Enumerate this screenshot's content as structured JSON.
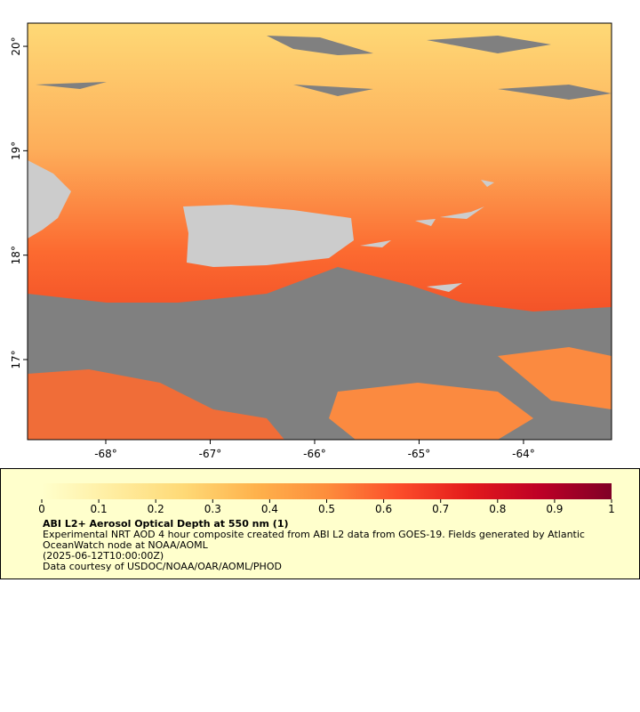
{
  "map": {
    "xlim": [
      -68.749,
      -63.157
    ],
    "ylim": [
      16.233,
      20.222
    ],
    "lon_ticks": [
      {
        "value": -68,
        "label": "-68°"
      },
      {
        "value": -67,
        "label": "-67°"
      },
      {
        "value": -66,
        "label": "-66°"
      },
      {
        "value": -65,
        "label": "-65°"
      },
      {
        "value": -64,
        "label": "-64°"
      }
    ],
    "lat_ticks": [
      {
        "value": 17,
        "label": "17°"
      },
      {
        "value": 18,
        "label": "18°"
      },
      {
        "value": 19,
        "label": "19°"
      },
      {
        "value": 20,
        "label": "20°"
      }
    ]
  },
  "colorbar": {
    "lim": [
      0,
      1
    ],
    "ticks": [
      0,
      0.1,
      0.2,
      0.3,
      0.4,
      0.5,
      0.6,
      0.7,
      0.8,
      0.9,
      1
    ],
    "colors": [
      "#ffffcc",
      "#ffeda0",
      "#fed976",
      "#feb24c",
      "#fd8d3c",
      "#fc4e2a",
      "#e31a1c",
      "#bd0026",
      "#800026"
    ]
  },
  "legend": {
    "title": "ABI L2+ Aerosol Optical Depth at 550 nm (1)",
    "lines": [
      "Experimental NRT AOD 4 hour composite created from ABI L2 data from GOES-19. Fields generated by Atlantic OceanWatch node at NOAA/AOML",
      "(2025-06-12T10:00:00Z)",
      "Data courtesy of USDOC/NOAA/OAR/AOML/PHOD"
    ]
  }
}
